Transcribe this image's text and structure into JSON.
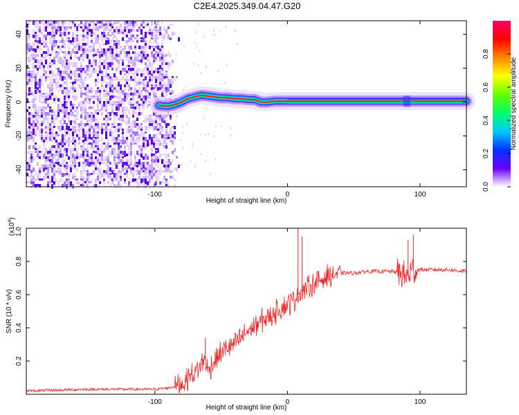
{
  "title": "C2E4.2025.349.04.47.G20",
  "chart_data": [
    {
      "type": "heatmap",
      "title": "C2E4.2025.349.04.47.G20",
      "xlabel": "Height of straight line (km)",
      "ylabel": "Frequency (Hz)",
      "xlim": [
        -197,
        135
      ],
      "ylim": [
        -50,
        48
      ],
      "xticks": [
        -100,
        0,
        100
      ],
      "xtick_labels": [
        "-100",
        "0",
        "100"
      ],
      "yticks": [
        -40,
        -20,
        0,
        20,
        40
      ],
      "ytick_labels": [
        "-40",
        "-20",
        "0",
        "20",
        "40"
      ],
      "colorbar": {
        "label": "Normalized spectral amplitude",
        "range": [
          0,
          1
        ],
        "ticks": [
          0,
          0.2,
          0.4,
          0.6,
          0.8
        ],
        "tick_labels": [
          "0.0",
          "0.2",
          "0.4",
          "0.6",
          "0.8"
        ],
        "colormap": [
          "#ffffff",
          "#6a00ff",
          "#0033ff",
          "#00ccff",
          "#00ff66",
          "#66ff00",
          "#ffff00",
          "#ff8800",
          "#ff0000",
          "#ff0066"
        ]
      },
      "noise_region_x": [
        -197,
        -95
      ],
      "ridge": {
        "x": [
          -97,
          -90,
          -85,
          -80,
          -75,
          -70,
          -65,
          -60,
          -55,
          -50,
          -45,
          -40,
          -35,
          -30,
          -25,
          -20,
          -15,
          -10,
          -5,
          0,
          10,
          30,
          60,
          90,
          135
        ],
        "frequency": [
          -2,
          -2.5,
          -1.5,
          0,
          2,
          3,
          4,
          3.5,
          3,
          2.5,
          2.5,
          2,
          2,
          1.5,
          1.5,
          0,
          0,
          0.5,
          0.5,
          0.5,
          0.5,
          0.5,
          0.5,
          0.5,
          0.5
        ]
      },
      "marker_x": 90
    },
    {
      "type": "line",
      "xlabel": "Height of straight line (km)",
      "ylabel": "SNR (10 * v/v)",
      "y_multiplier": "(x10",
      "y_multiplier_exp": "4",
      "y_multiplier_close": ")",
      "xlim": [
        -197,
        135
      ],
      "ylim": [
        0,
        1.0
      ],
      "xticks": [
        -100,
        0,
        100
      ],
      "xtick_labels": [
        "-100",
        "0",
        "100"
      ],
      "yticks": [
        0.2,
        0.4,
        0.6,
        0.8,
        1.0
      ],
      "ytick_labels": [
        "0.2",
        "0.4",
        "0.6",
        "0.8",
        "1.0"
      ],
      "line_color": "#ee2222",
      "series": [
        {
          "name": "SNR",
          "x": [
            -197,
            -150,
            -100,
            -88,
            -80,
            -75,
            -70,
            -65,
            -62,
            -60,
            -55,
            -50,
            -45,
            -40,
            -35,
            -30,
            -25,
            -20,
            -15,
            -10,
            -5,
            0,
            5,
            8,
            10,
            12,
            15,
            20,
            25,
            30,
            35,
            40,
            50,
            60,
            70,
            80,
            85,
            88,
            90,
            92,
            95,
            100,
            110,
            120,
            135
          ],
          "y": [
            0.02,
            0.03,
            0.03,
            0.04,
            0.06,
            0.1,
            0.13,
            0.18,
            0.22,
            0.14,
            0.2,
            0.25,
            0.28,
            0.3,
            0.34,
            0.38,
            0.41,
            0.44,
            0.46,
            0.49,
            0.52,
            0.54,
            0.57,
            0.6,
            0.62,
            0.62,
            0.64,
            0.66,
            0.69,
            0.71,
            0.72,
            0.73,
            0.73,
            0.74,
            0.74,
            0.74,
            0.73,
            0.72,
            0.7,
            0.73,
            0.75,
            0.75,
            0.75,
            0.75,
            0.74
          ]
        }
      ],
      "spikes": [
        {
          "x": 8,
          "y": 1.0
        },
        {
          "x": 11,
          "y": 0.95
        },
        {
          "x": 95,
          "y": 0.96
        },
        {
          "x": 91,
          "y": 0.93
        },
        {
          "x": -62,
          "y": 0.34
        }
      ]
    }
  ]
}
